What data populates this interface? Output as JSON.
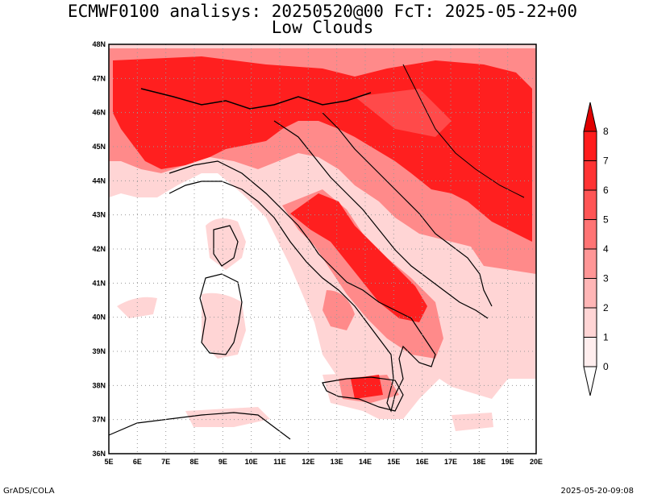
{
  "title": "ECMWF0100 analisys: 20250520@00 FcT: 2025-05-22+00",
  "subtitle": "Low Clouds",
  "footer_left": "GrADS/COLA",
  "footer_right": "2025-05-20-09:08",
  "map": {
    "lat_labels": [
      "48N",
      "47N",
      "46N",
      "45N",
      "44N",
      "43N",
      "42N",
      "41N",
      "40N",
      "39N",
      "38N",
      "37N",
      "36N"
    ],
    "lon_labels": [
      "5E",
      "6E",
      "7E",
      "8E",
      "9E",
      "10E",
      "11E",
      "12E",
      "13E",
      "14E",
      "15E",
      "16E",
      "17E",
      "18E",
      "19E",
      "20E"
    ],
    "lat_range": [
      36,
      48
    ],
    "lon_range": [
      5,
      20
    ],
    "grid": "dotted"
  },
  "colorbar": {
    "labels": [
      "8",
      "7",
      "6",
      "5",
      "4",
      "3",
      "2",
      "1",
      "0"
    ],
    "colors": [
      "#ff1c1c",
      "#ff3333",
      "#ff5555",
      "#ff7474",
      "#ff9696",
      "#ffb6b6",
      "#ffd5d5",
      "#ffeeee"
    ],
    "top_triangle": "#e00000",
    "bottom_triangle": "#ffffff"
  },
  "colors": {
    "land_base": "#ffd5d5",
    "cloud_high": "#ff2020",
    "cloud_mid": "#ff6f6f",
    "coast": "#000000"
  }
}
